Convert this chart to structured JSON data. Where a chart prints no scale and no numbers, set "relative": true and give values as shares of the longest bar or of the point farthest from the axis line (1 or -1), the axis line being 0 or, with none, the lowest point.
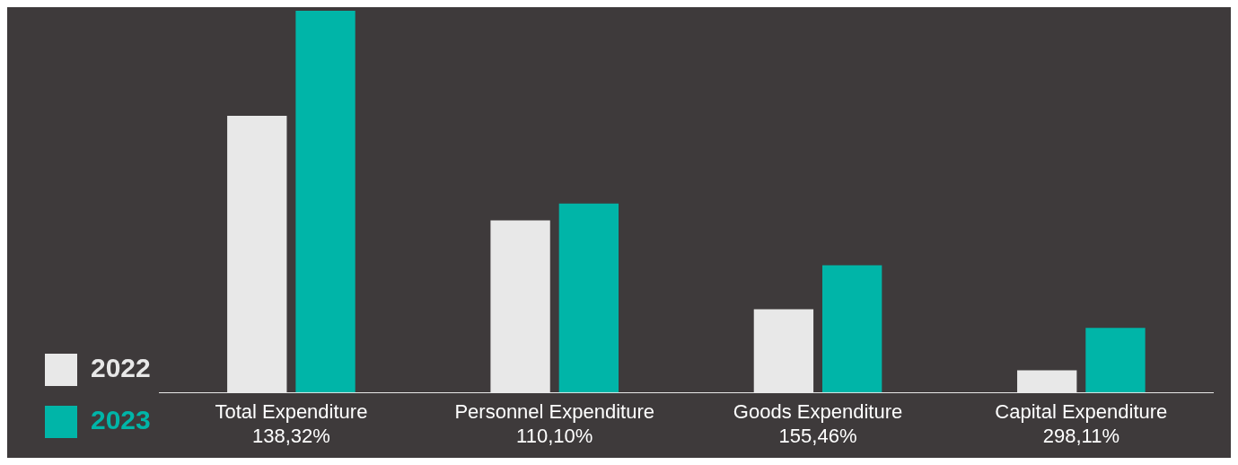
{
  "chart_data": {
    "type": "bar",
    "relative": true,
    "categories": [
      "Total Expenditure\n138,32%",
      "Personnel Expenditure\n110,10%",
      "Goods Expenditure\n155,46%",
      "Capital Expenditure\n298,11%"
    ],
    "series": [
      {
        "name": "2022",
        "color": "#e8e8e8",
        "values": [
          0.725,
          0.451,
          0.218,
          0.058
        ]
      },
      {
        "name": "2023",
        "color": "#00b5a8",
        "values": [
          1,
          0.495,
          0.333,
          0.169
        ]
      }
    ],
    "legend": "bottom left",
    "grid": false
  }
}
